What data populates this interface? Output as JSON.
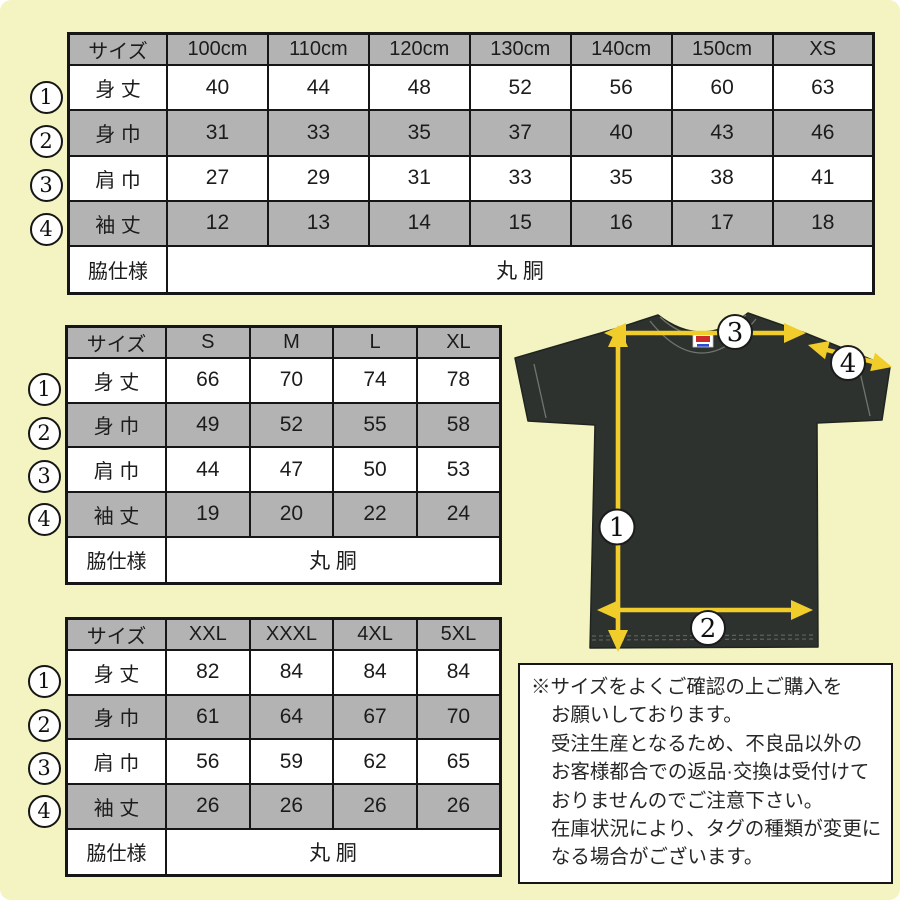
{
  "colors": {
    "bg": "#f3f4c1",
    "gray": "#b3b3b3",
    "ink": "#161616",
    "shirt": "#2e322f",
    "yellow": "#f0cd2a"
  },
  "tables": [
    {
      "title": "kids-sizes",
      "columns": [
        "サイズ",
        "100cm",
        "110cm",
        "120cm",
        "130cm",
        "140cm",
        "150cm",
        "XS"
      ],
      "rows": [
        {
          "marker": "1",
          "label": "身 丈",
          "values": [
            "40",
            "44",
            "48",
            "52",
            "56",
            "60",
            "63"
          ]
        },
        {
          "marker": "2",
          "label": "身 巾",
          "values": [
            "31",
            "33",
            "35",
            "37",
            "40",
            "43",
            "46"
          ]
        },
        {
          "marker": "3",
          "label": "肩 巾",
          "values": [
            "27",
            "29",
            "31",
            "33",
            "35",
            "38",
            "41"
          ]
        },
        {
          "marker": "4",
          "label": "袖 丈",
          "values": [
            "12",
            "13",
            "14",
            "15",
            "16",
            "17",
            "18"
          ]
        }
      ],
      "footer": {
        "label": "脇仕様",
        "value": "丸 胴"
      }
    },
    {
      "title": "adult-sizes-s-xl",
      "columns": [
        "サイズ",
        "S",
        "M",
        "L",
        "XL"
      ],
      "rows": [
        {
          "marker": "1",
          "label": "身 丈",
          "values": [
            "66",
            "70",
            "74",
            "78"
          ]
        },
        {
          "marker": "2",
          "label": "身 巾",
          "values": [
            "49",
            "52",
            "55",
            "58"
          ]
        },
        {
          "marker": "3",
          "label": "肩 巾",
          "values": [
            "44",
            "47",
            "50",
            "53"
          ]
        },
        {
          "marker": "4",
          "label": "袖 丈",
          "values": [
            "19",
            "20",
            "22",
            "24"
          ]
        }
      ],
      "footer": {
        "label": "脇仕様",
        "value": "丸 胴"
      }
    },
    {
      "title": "adult-sizes-xxl-5xl",
      "columns": [
        "サイズ",
        "XXL",
        "XXXL",
        "4XL",
        "5XL"
      ],
      "rows": [
        {
          "marker": "1",
          "label": "身 丈",
          "values": [
            "82",
            "84",
            "84",
            "84"
          ]
        },
        {
          "marker": "2",
          "label": "身 巾",
          "values": [
            "61",
            "64",
            "67",
            "70"
          ]
        },
        {
          "marker": "3",
          "label": "肩 巾",
          "values": [
            "56",
            "59",
            "62",
            "65"
          ]
        },
        {
          "marker": "4",
          "label": "袖 丈",
          "values": [
            "26",
            "26",
            "26",
            "26"
          ]
        }
      ],
      "footer": {
        "label": "脇仕様",
        "value": "丸 胴"
      }
    }
  ],
  "diagram": {
    "markers": [
      "1",
      "2",
      "3",
      "4"
    ]
  },
  "note": {
    "lines": [
      "※サイズをよくご確認の上ご購入を",
      "お願いしております。",
      "受注生産となるため、不良品以外の",
      "お客様都合での返品·交換は受付けて",
      "おりませんのでご注意下さい。",
      "在庫状況により、タグの種類が変更に",
      "なる場合がございます。"
    ]
  }
}
